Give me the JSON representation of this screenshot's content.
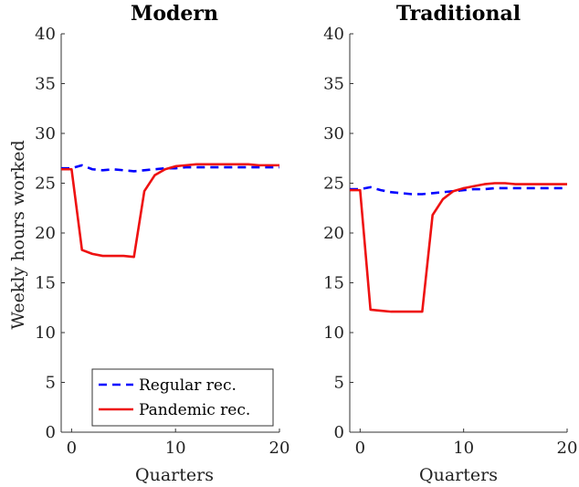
{
  "chart_data": [
    {
      "type": "line",
      "title": "Modern",
      "xlabel": "Quarters",
      "ylabel": "Weekly hours worked",
      "xlim": [
        -1,
        20
      ],
      "ylim": [
        0,
        40
      ],
      "xticks": [
        0,
        10,
        20
      ],
      "yticks": [
        0,
        5,
        10,
        15,
        20,
        25,
        30,
        35,
        40
      ],
      "legend": {
        "placement": "bottom-right"
      },
      "series": [
        {
          "name": "Regular rec.",
          "color": "#0000ff",
          "style": "dashed",
          "x": [
            -1,
            0,
            1,
            2,
            3,
            4,
            5,
            6,
            7,
            8,
            9,
            10,
            11,
            12,
            13,
            14,
            15,
            16,
            17,
            18,
            19,
            20
          ],
          "y": [
            26.5,
            26.5,
            26.8,
            26.4,
            26.3,
            26.4,
            26.3,
            26.2,
            26.3,
            26.4,
            26.5,
            26.5,
            26.6,
            26.6,
            26.6,
            26.6,
            26.6,
            26.6,
            26.6,
            26.6,
            26.6,
            26.6
          ]
        },
        {
          "name": "Pandemic rec.",
          "color": "#ee1111",
          "style": "solid",
          "x": [
            -1,
            0,
            1,
            2,
            3,
            4,
            5,
            6,
            7,
            8,
            9,
            10,
            11,
            12,
            13,
            14,
            15,
            16,
            17,
            18,
            19,
            20
          ],
          "y": [
            26.4,
            26.4,
            18.3,
            17.9,
            17.7,
            17.7,
            17.7,
            17.6,
            24.2,
            25.8,
            26.4,
            26.7,
            26.8,
            26.9,
            26.9,
            26.9,
            26.9,
            26.9,
            26.9,
            26.8,
            26.8,
            26.8
          ]
        }
      ]
    },
    {
      "type": "line",
      "title": "Traditional",
      "xlabel": "Quarters",
      "ylabel": "",
      "xlim": [
        -1,
        20
      ],
      "ylim": [
        0,
        40
      ],
      "xticks": [
        0,
        10,
        20
      ],
      "yticks": [
        0,
        5,
        10,
        15,
        20,
        25,
        30,
        35,
        40
      ],
      "series": [
        {
          "name": "Regular rec.",
          "color": "#0000ff",
          "style": "dashed",
          "x": [
            -1,
            0,
            1,
            2,
            3,
            4,
            5,
            6,
            7,
            8,
            9,
            10,
            11,
            12,
            13,
            14,
            15,
            16,
            17,
            18,
            19,
            20
          ],
          "y": [
            24.4,
            24.4,
            24.6,
            24.3,
            24.1,
            24.0,
            23.9,
            23.9,
            24.0,
            24.1,
            24.2,
            24.3,
            24.4,
            24.4,
            24.5,
            24.5,
            24.5,
            24.5,
            24.5,
            24.5,
            24.5,
            24.5
          ]
        },
        {
          "name": "Pandemic rec.",
          "color": "#ee1111",
          "style": "solid",
          "x": [
            -1,
            0,
            1,
            2,
            3,
            4,
            5,
            6,
            7,
            8,
            9,
            10,
            11,
            12,
            13,
            14,
            15,
            16,
            17,
            18,
            19,
            20
          ],
          "y": [
            24.3,
            24.3,
            12.3,
            12.2,
            12.1,
            12.1,
            12.1,
            12.1,
            21.8,
            23.4,
            24.2,
            24.5,
            24.7,
            24.9,
            25.0,
            25.0,
            24.9,
            24.9,
            24.9,
            24.9,
            24.9,
            24.9
          ]
        }
      ]
    }
  ]
}
